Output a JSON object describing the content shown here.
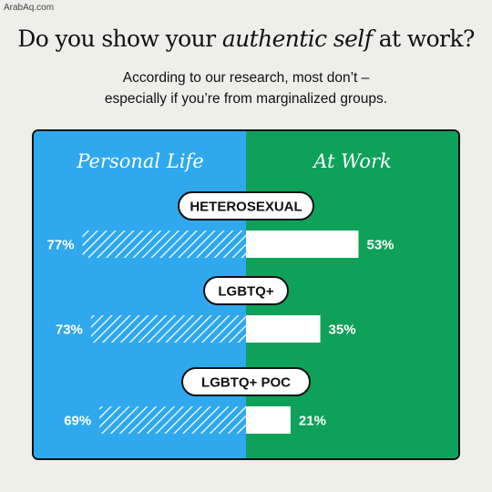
{
  "watermark": "ArabAq.com",
  "title": {
    "pre": "Do you show your ",
    "emph": "authentic self",
    "post": " at work?"
  },
  "subtitle": {
    "line1": "According to our research, most don’t –",
    "line2": "especially if you’re from marginalized groups."
  },
  "colors": {
    "personal_bg": "#2fa8ee",
    "work_bg": "#0ea15a",
    "bar_fill": "#ffffff",
    "text_dark": "#111111"
  },
  "chart_data": {
    "type": "bar",
    "orientation": "horizontal-diverging",
    "categories": [
      "HETEROSEXUAL",
      "LGBTQ+",
      "LGBTQ+ POC"
    ],
    "series": [
      {
        "name": "Personal Life",
        "values": [
          77,
          73,
          69
        ],
        "labels": [
          "77%",
          "73%",
          "69%"
        ],
        "pattern": "hatched"
      },
      {
        "name": "At Work",
        "values": [
          53,
          35,
          21
        ],
        "labels": [
          "53%",
          "35%",
          "21%"
        ],
        "pattern": "solid"
      }
    ],
    "unit": "%",
    "xlim": [
      0,
      100
    ],
    "grid": false,
    "legend": "top"
  }
}
